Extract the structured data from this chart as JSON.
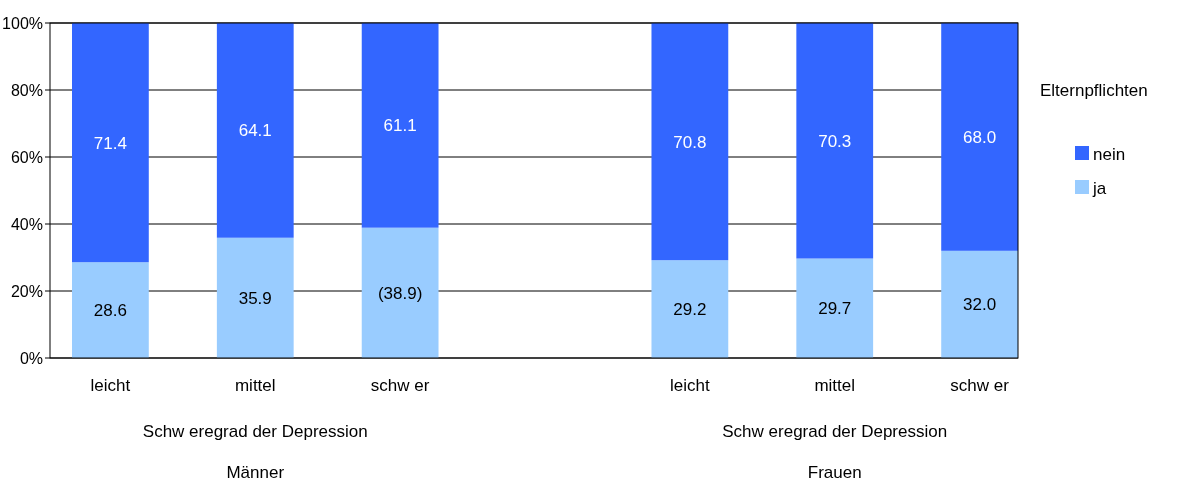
{
  "chart_data": {
    "type": "bar",
    "stacked": true,
    "categories": [
      "leicht",
      "mittel",
      "schw er",
      null,
      "leicht",
      "mittel",
      "schw er"
    ],
    "series": [
      {
        "name": "ja",
        "color": "#99ccff",
        "values": [
          28.6,
          35.9,
          38.9,
          null,
          29.2,
          29.7,
          32.0
        ],
        "value_labels": [
          "28.6",
          "35.9",
          "(38.9)",
          null,
          "29.2",
          "29.7",
          "32.0"
        ]
      },
      {
        "name": "nein",
        "color": "#3366ff",
        "values": [
          71.4,
          64.1,
          61.1,
          null,
          70.8,
          70.3,
          68.0
        ],
        "value_labels": [
          "71.4",
          "64.1",
          "61.1",
          null,
          "70.8",
          "70.3",
          "68.0"
        ]
      }
    ],
    "xlabel": "Schw eregrad der Depression",
    "annotations": [
      "Männer",
      "Frauen"
    ],
    "legend_title": "Elternpflichten",
    "legend": "right",
    "ylim": [
      0,
      100
    ],
    "yticks": [
      {
        "value": 0,
        "label": "0%"
      },
      {
        "value": 20,
        "label": "20%"
      },
      {
        "value": 40,
        "label": "40%"
      },
      {
        "value": 60,
        "label": "60%"
      },
      {
        "value": 80,
        "label": "80%"
      },
      {
        "value": 100,
        "label": "100%"
      }
    ],
    "grid": "y"
  }
}
